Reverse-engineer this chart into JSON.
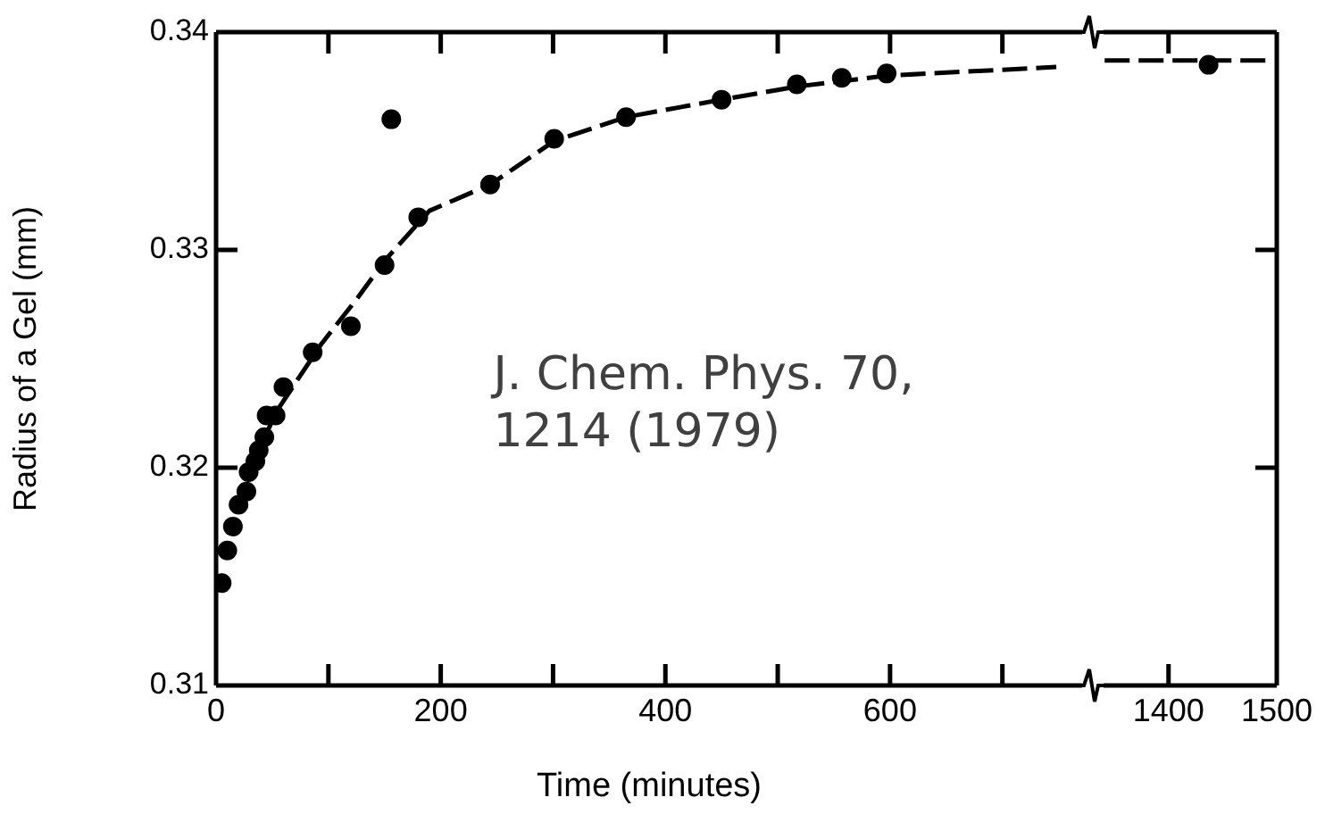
{
  "chart_data": [
    {
      "type": "scatter",
      "xlabel": "Time (minutes)",
      "ylabel": "Radius of a Gel (mm)",
      "xlim": [
        0,
        771
      ],
      "xticks": [
        0,
        {
          "value": 100,
          "label": null
        },
        200,
        {
          "value": 300,
          "label": null
        },
        400,
        {
          "value": 500,
          "label": null
        },
        600,
        {
          "value": 700,
          "label": null
        }
      ],
      "ylim": [
        0.31,
        0.34
      ],
      "yticks": [
        0.31,
        0.32,
        0.33,
        0.34
      ],
      "grid": false,
      "legend": false,
      "annotations": [
        "J. Chem. Phys. 70, 1214 (1979)"
      ],
      "series": [
        {
          "color": "#000000",
          "marker": "circle",
          "x": [
            5,
            10,
            15,
            20,
            27,
            29,
            35,
            38,
            43,
            45,
            53,
            60,
            86,
            120,
            150,
            156,
            180,
            244,
            301,
            365,
            450,
            517,
            557,
            597
          ],
          "values": [
            0.3147,
            0.3162,
            0.3173,
            0.3183,
            0.3189,
            0.3198,
            0.3203,
            0.3208,
            0.3214,
            0.3224,
            0.3224,
            0.3237,
            0.3253,
            0.3265,
            0.3293,
            0.336,
            0.3315,
            0.333,
            0.3351,
            0.3361,
            0.3369,
            0.3376,
            0.3379,
            0.3381
          ]
        },
        {
          "type": "line",
          "color": "#000000",
          "marker": "none",
          "line_style": "dashed",
          "x": [
            30,
            54,
            94,
            126,
            150,
            190,
            244,
            301,
            365,
            450,
            517,
            597,
            748
          ],
          "values": [
            0.3199,
            0.3226,
            0.3257,
            0.3278,
            0.3295,
            0.3318,
            0.333,
            0.335,
            0.3361,
            0.3369,
            0.3375,
            0.338,
            0.3384
          ]
        }
      ]
    },
    {
      "type": "scatter",
      "xlim": [
        1340,
        1500
      ],
      "xticks": [
        1400,
        1500
      ],
      "ylim": [
        0.31,
        0.34
      ],
      "yticks": [
        0.31,
        0.32,
        0.33,
        0.34
      ],
      "grid": false,
      "legend": false,
      "tick_labels": "x",
      "series": [
        {
          "color": "#000000",
          "marker": "circle",
          "x": [
            1437
          ],
          "values": [
            0.3385
          ]
        },
        {
          "type": "line",
          "color": "#000000",
          "marker": "none",
          "line_style": "dashed",
          "x": [
            1341,
            1497
          ],
          "values": [
            0.3387,
            0.3387
          ]
        }
      ]
    }
  ]
}
